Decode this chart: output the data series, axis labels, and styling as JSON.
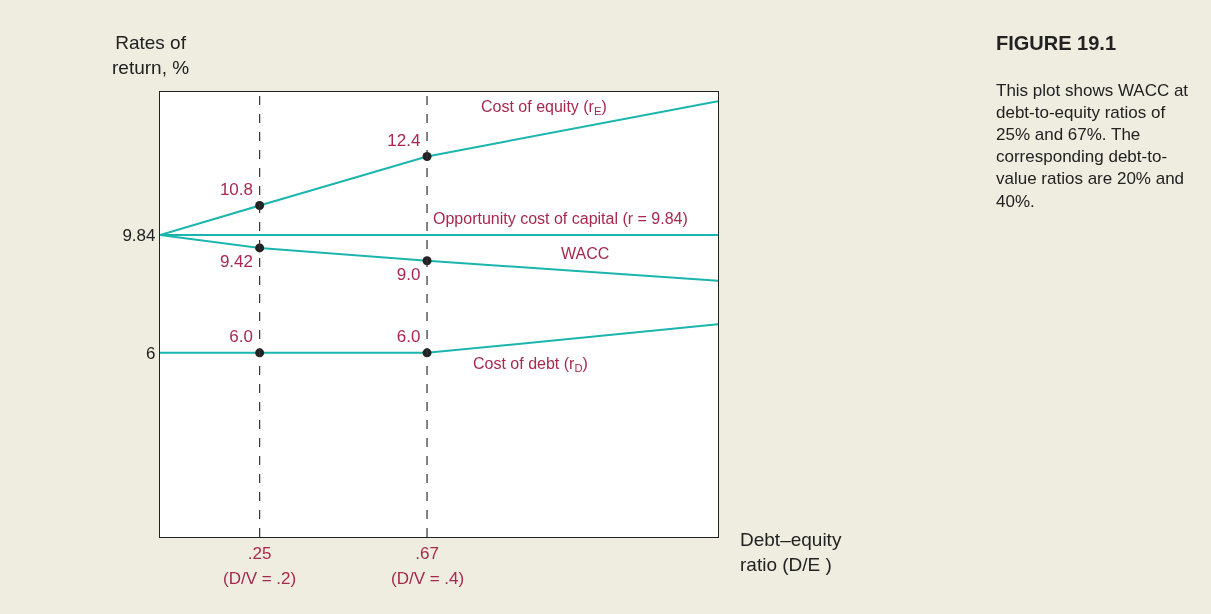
{
  "chart_data": {
    "type": "line",
    "ylabel": "Rates of\nreturn, %",
    "xlabel": "Debt–equity\nratio (D/E )",
    "xlim": [
      0,
      1.4
    ],
    "ylim": [
      0,
      14.5
    ],
    "xticks": [
      {
        "value": 0.25,
        "label": ".25"
      },
      {
        "value": 0.67,
        "label": ".67"
      }
    ],
    "yticks": [
      6,
      9.84
    ],
    "series": [
      {
        "name": "Cost of equity (r$_{E}$)",
        "color": "#1bb5ae",
        "x": [
          0,
          0.25,
          0.67,
          1.4
        ],
        "values": [
          9.84,
          10.8,
          12.4,
          14.2
        ]
      },
      {
        "name": "Opportunity cost of capital (r = 9.84)",
        "color": "#1bb5ae",
        "x": [
          0,
          1.4
        ],
        "values": [
          9.84,
          9.84
        ]
      },
      {
        "name": "WACC",
        "color": "#1bb5ae",
        "x": [
          0,
          0.25,
          0.67,
          1.4
        ],
        "values": [
          9.84,
          9.42,
          9.0,
          8.35
        ]
      },
      {
        "name": "Cost of debt (r$_{D}$)",
        "color": "#1bb5ae",
        "x": [
          0,
          0.25,
          0.67,
          1.4
        ],
        "values": [
          6,
          6,
          6,
          6.93
        ]
      },
      {
        "type": "scatter",
        "marker": "circle",
        "color": "#222222",
        "x": [
          0.25,
          0.67,
          0.25,
          0.67
        ],
        "values": [
          10.8,
          12.4,
          6.0,
          6.0
        ],
        "value_labels": [
          "10.8",
          "12.4",
          "6.0",
          "6.0"
        ]
      },
      {
        "type": "scatter",
        "marker": "circle",
        "color": "#222222",
        "x": [
          0.25,
          0.67
        ],
        "values": [
          9.42,
          9.0
        ],
        "value_labels": [
          "9.42",
          "9.0"
        ]
      }
    ],
    "ref_lines": [
      {
        "axis": "x",
        "value": 0.25,
        "color": "#333333",
        "line_style": "dashed"
      },
      {
        "axis": "x",
        "value": 0.67,
        "color": "#333333",
        "line_style": "dashed"
      }
    ],
    "marker": "none",
    "line_style": "solid",
    "legend": false,
    "annotations": [
      {
        "text": "(D/V = .2)",
        "x": 0.25,
        "y": 0
      },
      {
        "text": "(D/V = .4)",
        "x": 0.67,
        "y": 0
      },
      "FIGURE 19.1",
      "This plot shows WACC at debt-to-equity ratios of 25% and 67%. The corresponding debt-to-value ratios are 20% and 40%."
    ]
  }
}
